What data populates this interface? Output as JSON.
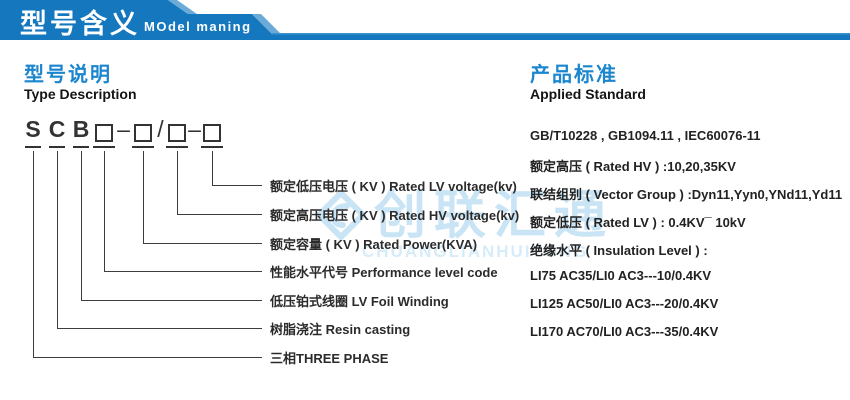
{
  "header": {
    "title_cn": "型号含义",
    "title_en": "MOdel maning"
  },
  "left_section": {
    "title_cn": "型号说明",
    "title_en": "Type Description",
    "code_elements": [
      {
        "kind": "char",
        "value": "S"
      },
      {
        "kind": "char",
        "value": "C"
      },
      {
        "kind": "char",
        "value": "B"
      },
      {
        "kind": "box"
      },
      {
        "kind": "sep",
        "value": "–"
      },
      {
        "kind": "box"
      },
      {
        "kind": "sep",
        "value": "/"
      },
      {
        "kind": "box"
      },
      {
        "kind": "sep",
        "value": "–"
      },
      {
        "kind": "box"
      }
    ],
    "labels": [
      "额定低压电压 ( KV ) Rated LV voltage(kv)",
      "额定高压电压 ( KV ) Rated HV voltage(kv)",
      "额定容量 ( KV ) Rated Power(KVA)",
      "性能水平代号 Performance level code",
      "低压铂式线圈 LV Foil Winding",
      "树脂浇注 Resin casting",
      "三相THREE PHASE"
    ]
  },
  "right_section": {
    "title_cn": "产品标准",
    "title_en": "Applied Standard",
    "lines": [
      "GB/T10228 , GB1094.11 , IEC60076-11",
      "额定高压 ( Rated HV ) :10,20,35KV",
      "联结组别 ( Vector Group ) :Dyn11,Yyn0,YNd11,Yd11",
      "额定低压 ( Rated LV ) : 0.4KV¯ 10kV",
      "绝缘水平 ( Insulation Level ) :",
      "LI75 AC35/LI0 AC3---10/0.4KV",
      "LI125 AC50/LI0 AC3---20/0.4KV",
      "LI170 AC70/LI0 AC3---35/0.4KV"
    ]
  },
  "watermark": {
    "text_cn": "创联汇通",
    "text_en": "CHUANGLIANHUITONG"
  },
  "colors": {
    "primary_blue": "#1578bf",
    "bevel_blue": "#6cabd8",
    "title_blue": "#1b86ce",
    "text_dark": "#2b2b2b",
    "watermark_blue": "#c6e3f5"
  }
}
